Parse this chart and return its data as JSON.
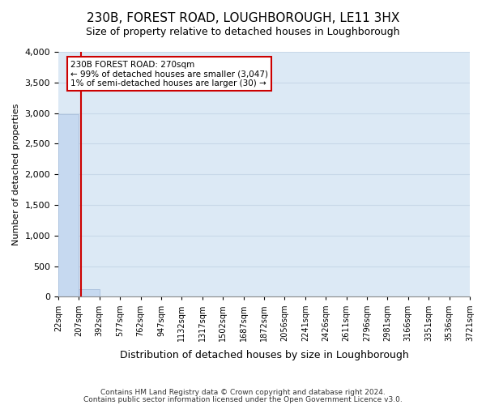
{
  "title": "230B, FOREST ROAD, LOUGHBOROUGH, LE11 3HX",
  "subtitle": "Size of property relative to detached houses in Loughborough",
  "xlabel": "Distribution of detached houses by size in Loughborough",
  "ylabel": "Number of detached properties",
  "footer_line1": "Contains HM Land Registry data © Crown copyright and database right 2024.",
  "footer_line2": "Contains public sector information licensed under the Open Government Licence v3.0.",
  "bin_labels": [
    "22sqm",
    "207sqm",
    "392sqm",
    "577sqm",
    "762sqm",
    "947sqm",
    "1132sqm",
    "1317sqm",
    "1502sqm",
    "1687sqm",
    "1872sqm",
    "2056sqm",
    "2241sqm",
    "2426sqm",
    "2611sqm",
    "2796sqm",
    "2981sqm",
    "3166sqm",
    "3351sqm",
    "3536sqm",
    "3721sqm"
  ],
  "bar_values": [
    2985,
    120,
    0,
    0,
    0,
    0,
    0,
    0,
    0,
    0,
    0,
    0,
    0,
    0,
    0,
    0,
    0,
    0,
    0,
    0
  ],
  "bar_color": "#c6d9f0",
  "bar_edge_color": "#a0b8d8",
  "ylim": [
    0,
    4000
  ],
  "yticks": [
    0,
    500,
    1000,
    1500,
    2000,
    2500,
    3000,
    3500,
    4000
  ],
  "property_line_x": 1.1,
  "property_line_color": "#cc0000",
  "annotation_text_line1": "230B FOREST ROAD: 270sqm",
  "annotation_text_line2": "← 99% of detached houses are smaller (3,047)",
  "annotation_text_line3": "1% of semi-detached houses are larger (30) →",
  "annotation_box_color": "#cc0000",
  "grid_color": "#c8d8e8",
  "bg_color": "#dce9f5"
}
